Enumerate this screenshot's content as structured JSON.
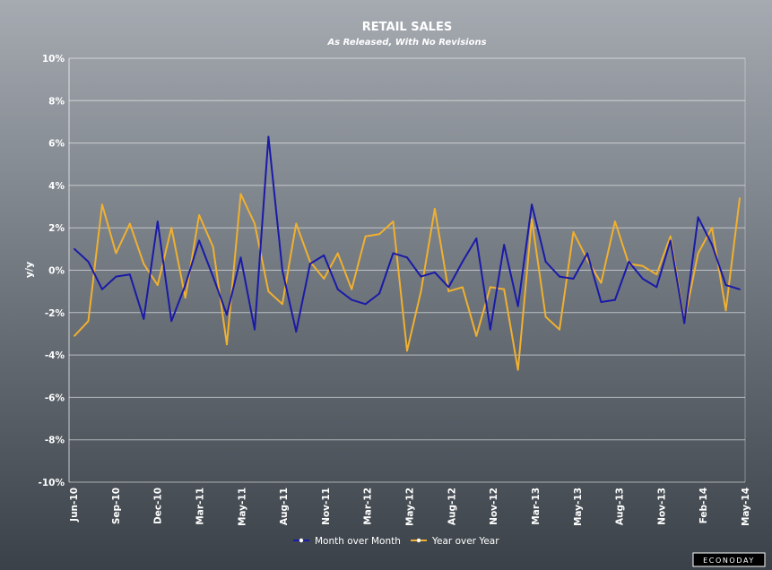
{
  "chart_data": {
    "type": "line",
    "title": "RETAIL SALES",
    "subtitle": "As Released, With No Revisions",
    "ylabel": "y/y",
    "xlabel": "",
    "ylim": [
      -10,
      10
    ],
    "y_ticks": [
      10,
      8,
      6,
      4,
      2,
      0,
      -2,
      -4,
      -6,
      -8,
      -10
    ],
    "y_tick_labels": [
      "10%",
      "8%",
      "6%",
      "4%",
      "2%",
      "0%",
      "-2%",
      "-4%",
      "-6%",
      "-8%",
      "-10%"
    ],
    "x_tick_labels": [
      "Jun-10",
      "Sep-10",
      "Dec-10",
      "Mar-11",
      "May-11",
      "Aug-11",
      "Nov-11",
      "Mar-12",
      "May-12",
      "Aug-12",
      "Nov-12",
      "Mar-13",
      "May-13",
      "Aug-13",
      "Nov-13",
      "Feb-14",
      "May-14"
    ],
    "grid": true,
    "legend_position": "bottom-center",
    "series": [
      {
        "name": "Month over Month",
        "color": "#1a1aa8",
        "values": [
          1.0,
          0.4,
          -0.9,
          -0.3,
          -0.2,
          -2.3,
          2.3,
          -2.4,
          -0.7,
          1.4,
          -0.3,
          -2.1,
          0.6,
          -2.8,
          6.3,
          0.0,
          -2.9,
          0.3,
          0.7,
          -0.9,
          -1.4,
          -1.6,
          -1.1,
          0.8,
          0.6,
          -0.3,
          -0.1,
          -0.8,
          0.4,
          1.5,
          -2.8,
          1.2,
          -1.7,
          3.1,
          0.4,
          -0.3,
          -0.4,
          0.8,
          -1.5,
          -1.4,
          0.4,
          -0.4,
          -0.8,
          1.4,
          -2.5,
          2.5,
          1.2,
          -0.7,
          -0.9
        ]
      },
      {
        "name": "Year over Year",
        "color": "#f0b030",
        "values": [
          -3.1,
          -2.4,
          3.1,
          0.8,
          2.2,
          0.3,
          -0.7,
          2.0,
          -1.3,
          2.6,
          1.1,
          -3.5,
          3.6,
          2.2,
          -1.0,
          -1.6,
          2.2,
          0.4,
          -0.4,
          0.8,
          -0.9,
          1.6,
          1.7,
          2.3,
          -3.8,
          -1.0,
          2.9,
          -1.0,
          -0.8,
          -3.1,
          -0.8,
          -0.9,
          -4.7,
          2.4,
          -2.2,
          -2.8,
          1.8,
          0.5,
          -0.6,
          2.3,
          0.3,
          0.2,
          -0.2,
          1.6,
          -2.4,
          0.8,
          2.0,
          -1.9,
          3.4
        ]
      }
    ]
  },
  "brand": {
    "label": "ECONODAY"
  }
}
